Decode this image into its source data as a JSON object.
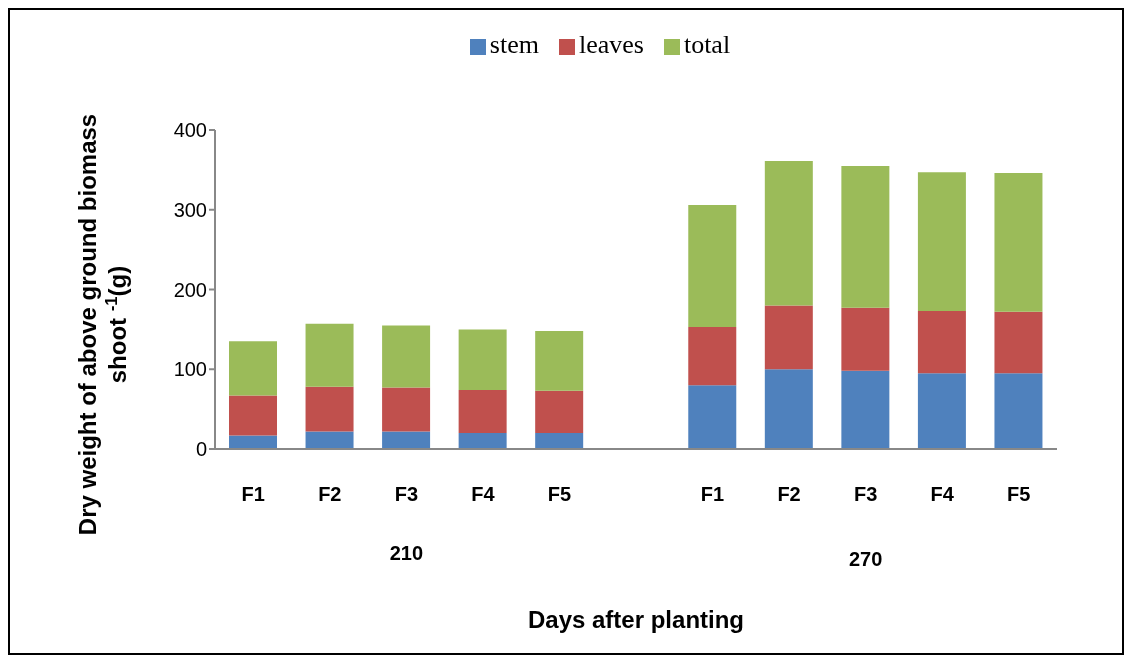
{
  "chart_data": {
    "type": "bar",
    "stacked": true,
    "xlabel": "Days after planting",
    "ylabel": "Dry weight of above ground biomass shoot $^{-1}$(g)",
    "categories": [
      "F1",
      "F2",
      "F3",
      "F4",
      "F5",
      null,
      "F1",
      "F2",
      "F3",
      "F4",
      "F5"
    ],
    "series": [
      {
        "name": "stem",
        "color": "#4f81bd",
        "values": [
          17,
          22,
          22,
          20,
          20,
          null,
          80,
          100,
          98,
          95,
          95
        ]
      },
      {
        "name": "leaves",
        "color": "#c0504d",
        "values": [
          50,
          56,
          55,
          54,
          53,
          null,
          73,
          80,
          79,
          78,
          77
        ]
      },
      {
        "name": "total",
        "color": "#9bbb59",
        "values": [
          68,
          79,
          78,
          76,
          75,
          null,
          153,
          181,
          178,
          174,
          174
        ]
      }
    ],
    "ylim": [
      0,
      400
    ],
    "yticks": [
      0,
      100,
      200,
      300,
      400
    ],
    "grid": false,
    "legend": "top",
    "annotations": [
      "210",
      "270"
    ]
  }
}
